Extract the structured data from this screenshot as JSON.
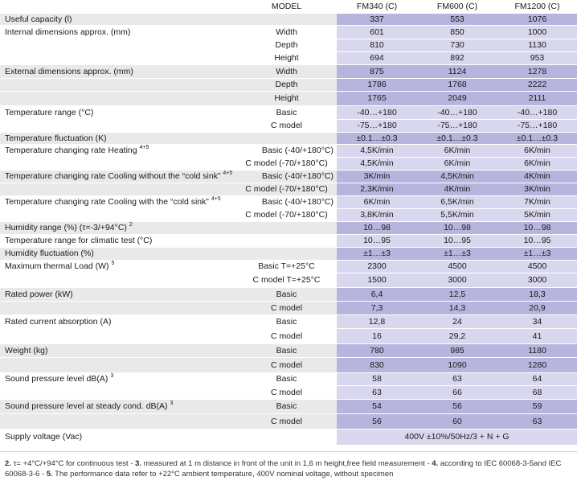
{
  "header": {
    "model": "MODEL",
    "col1": "FM340 (C)",
    "col2": "FM600 (C)",
    "col3": "FM1200 (C)"
  },
  "rows": [
    {
      "label": "Useful capacity (l)",
      "sup": "",
      "sub": "",
      "v": [
        "337",
        "553",
        "1076"
      ]
    },
    {
      "label": "Internal dimensions approx. (mm)",
      "sup": "",
      "sub": "Width",
      "v": [
        "601",
        "850",
        "1000"
      ]
    },
    {
      "label": "",
      "sup": "",
      "sub": "Depth",
      "v": [
        "810",
        "730",
        "1130"
      ]
    },
    {
      "label": "",
      "sup": "",
      "sub": "Height",
      "v": [
        "694",
        "892",
        "953"
      ]
    },
    {
      "label": "External dimensions approx. (mm)",
      "sup": "",
      "sub": "Width",
      "v": [
        "875",
        "1124",
        "1278"
      ]
    },
    {
      "label": "",
      "sup": "",
      "sub": "Depth",
      "v": [
        "1786",
        "1768",
        "2222"
      ]
    },
    {
      "label": "",
      "sup": "",
      "sub": "Height",
      "v": [
        "1765",
        "2049",
        "2111"
      ]
    },
    {
      "label": "Temperature range (°C)",
      "sup": "",
      "sub": "Basic",
      "v": [
        "-40…+180",
        "-40…+180",
        "-40…+180"
      ]
    },
    {
      "label": "",
      "sup": "",
      "sub": "C model",
      "v": [
        "-75…+180",
        "-75…+180",
        "-75…+180"
      ]
    },
    {
      "label": "Temperature fluctuation (K)",
      "sup": "",
      "sub": "",
      "v": [
        "±0.1…±0.3",
        "±0.1…±0.3",
        "±0.1…±0.3"
      ]
    },
    {
      "label": "Temperature changing rate Heating",
      "sup": "4+5",
      "sub": "Basic (-40/+180°C)",
      "v": [
        "4,5K/min",
        "6K/min",
        "6K/min"
      ]
    },
    {
      "label": "",
      "sup": "",
      "sub": "C model (-70/+180°C)",
      "v": [
        "4,5K/min",
        "6K/min",
        "6K/min"
      ]
    },
    {
      "label": "Temperature changing rate Cooling without the “cold sink”",
      "sup": "4+5",
      "sub": "Basic (-40/+180°C)",
      "v": [
        "3K/min",
        "4,5K/min",
        "4K/min"
      ]
    },
    {
      "label": "",
      "sup": "",
      "sub": "C model (-70/+180°C)",
      "v": [
        "2,3K/min",
        "4K/min",
        "3K/min"
      ]
    },
    {
      "label": "Temperature changing rate Cooling with the “cold sink”",
      "sup": "4+5",
      "sub": "Basic (-40/+180°C)",
      "v": [
        "6K/min",
        "6,5K/min",
        "7K/min"
      ]
    },
    {
      "label": "",
      "sup": "",
      "sub": "C model (-70/+180°C)",
      "v": [
        "3,8K/min",
        "5,5K/min",
        "5K/min"
      ]
    },
    {
      "label": "Humidity range (%) (τ=-3/+94°C)",
      "sup": "2",
      "sub": "",
      "v": [
        "10…98",
        "10…98",
        "10…98"
      ]
    },
    {
      "label": "Temperature range for climatic test (°C)",
      "sup": "",
      "sub": "",
      "v": [
        "10…95",
        "10…95",
        "10…95"
      ]
    },
    {
      "label": "Humidity fluctuation (%)",
      "sup": "",
      "sub": "",
      "v": [
        "±1…±3",
        "±1…±3",
        "±1…±3"
      ]
    },
    {
      "label": "Maximum thermal Load (W)",
      "sup": "5",
      "sub": "Basic T=+25°C",
      "v": [
        "2300",
        "4500",
        "4500"
      ]
    },
    {
      "label": "",
      "sup": "",
      "sub": "C model T=+25°C",
      "v": [
        "1500",
        "3000",
        "3000"
      ]
    },
    {
      "label": "Rated power (kW)",
      "sup": "",
      "sub": "Basic",
      "v": [
        "6,4",
        "12,5",
        "18,3"
      ]
    },
    {
      "label": "",
      "sup": "",
      "sub": "C model",
      "v": [
        "7,3",
        "14,3",
        "20,9"
      ]
    },
    {
      "label": "Rated current absorption (A)",
      "sup": "",
      "sub": "Basic",
      "v": [
        "12,8",
        "24",
        "34"
      ]
    },
    {
      "label": "",
      "sup": "",
      "sub": "C model",
      "v": [
        "16",
        "29,2",
        "41"
      ]
    },
    {
      "label": "Weight (kg)",
      "sup": "",
      "sub": "Basic",
      "v": [
        "780",
        "985",
        "1180"
      ]
    },
    {
      "label": "",
      "sup": "",
      "sub": "C model",
      "v": [
        "830",
        "1090",
        "1280"
      ]
    },
    {
      "label": "Sound pressure level dB(A)",
      "sup": "3",
      "sub": "Basic",
      "v": [
        "58",
        "63",
        "64"
      ]
    },
    {
      "label": "",
      "sup": "",
      "sub": "C model",
      "v": [
        "63",
        "66",
        "68"
      ]
    },
    {
      "label": "Sound pressure level at steady cond. dB(A)",
      "sup": "3",
      "sub": "Basic",
      "v": [
        "54",
        "56",
        "59"
      ]
    },
    {
      "label": "",
      "sup": "",
      "sub": "C model",
      "v": [
        "56",
        "60",
        "63"
      ]
    },
    {
      "label": "Supply voltage (Vac)",
      "sup": "",
      "sub": "",
      "v": [
        "400V ±10%/50Hz/3 + N + G"
      ]
    }
  ],
  "footnote": {
    "n2": "2.",
    "t2": " τ= +4°C/+94°C for continuous test - ",
    "n3": "3.",
    "t3": " measured at 1 m distance in front of the unit in 1,6 m height,free field measurement - ",
    "n4": "4.",
    "t4": " according to IEC 60068-3-5and IEC 60068-3-6 - ",
    "n5": "5.",
    "t5": " The performance data refer to +22°C ambient temperature, 400V nominal voltage, without specimen"
  }
}
